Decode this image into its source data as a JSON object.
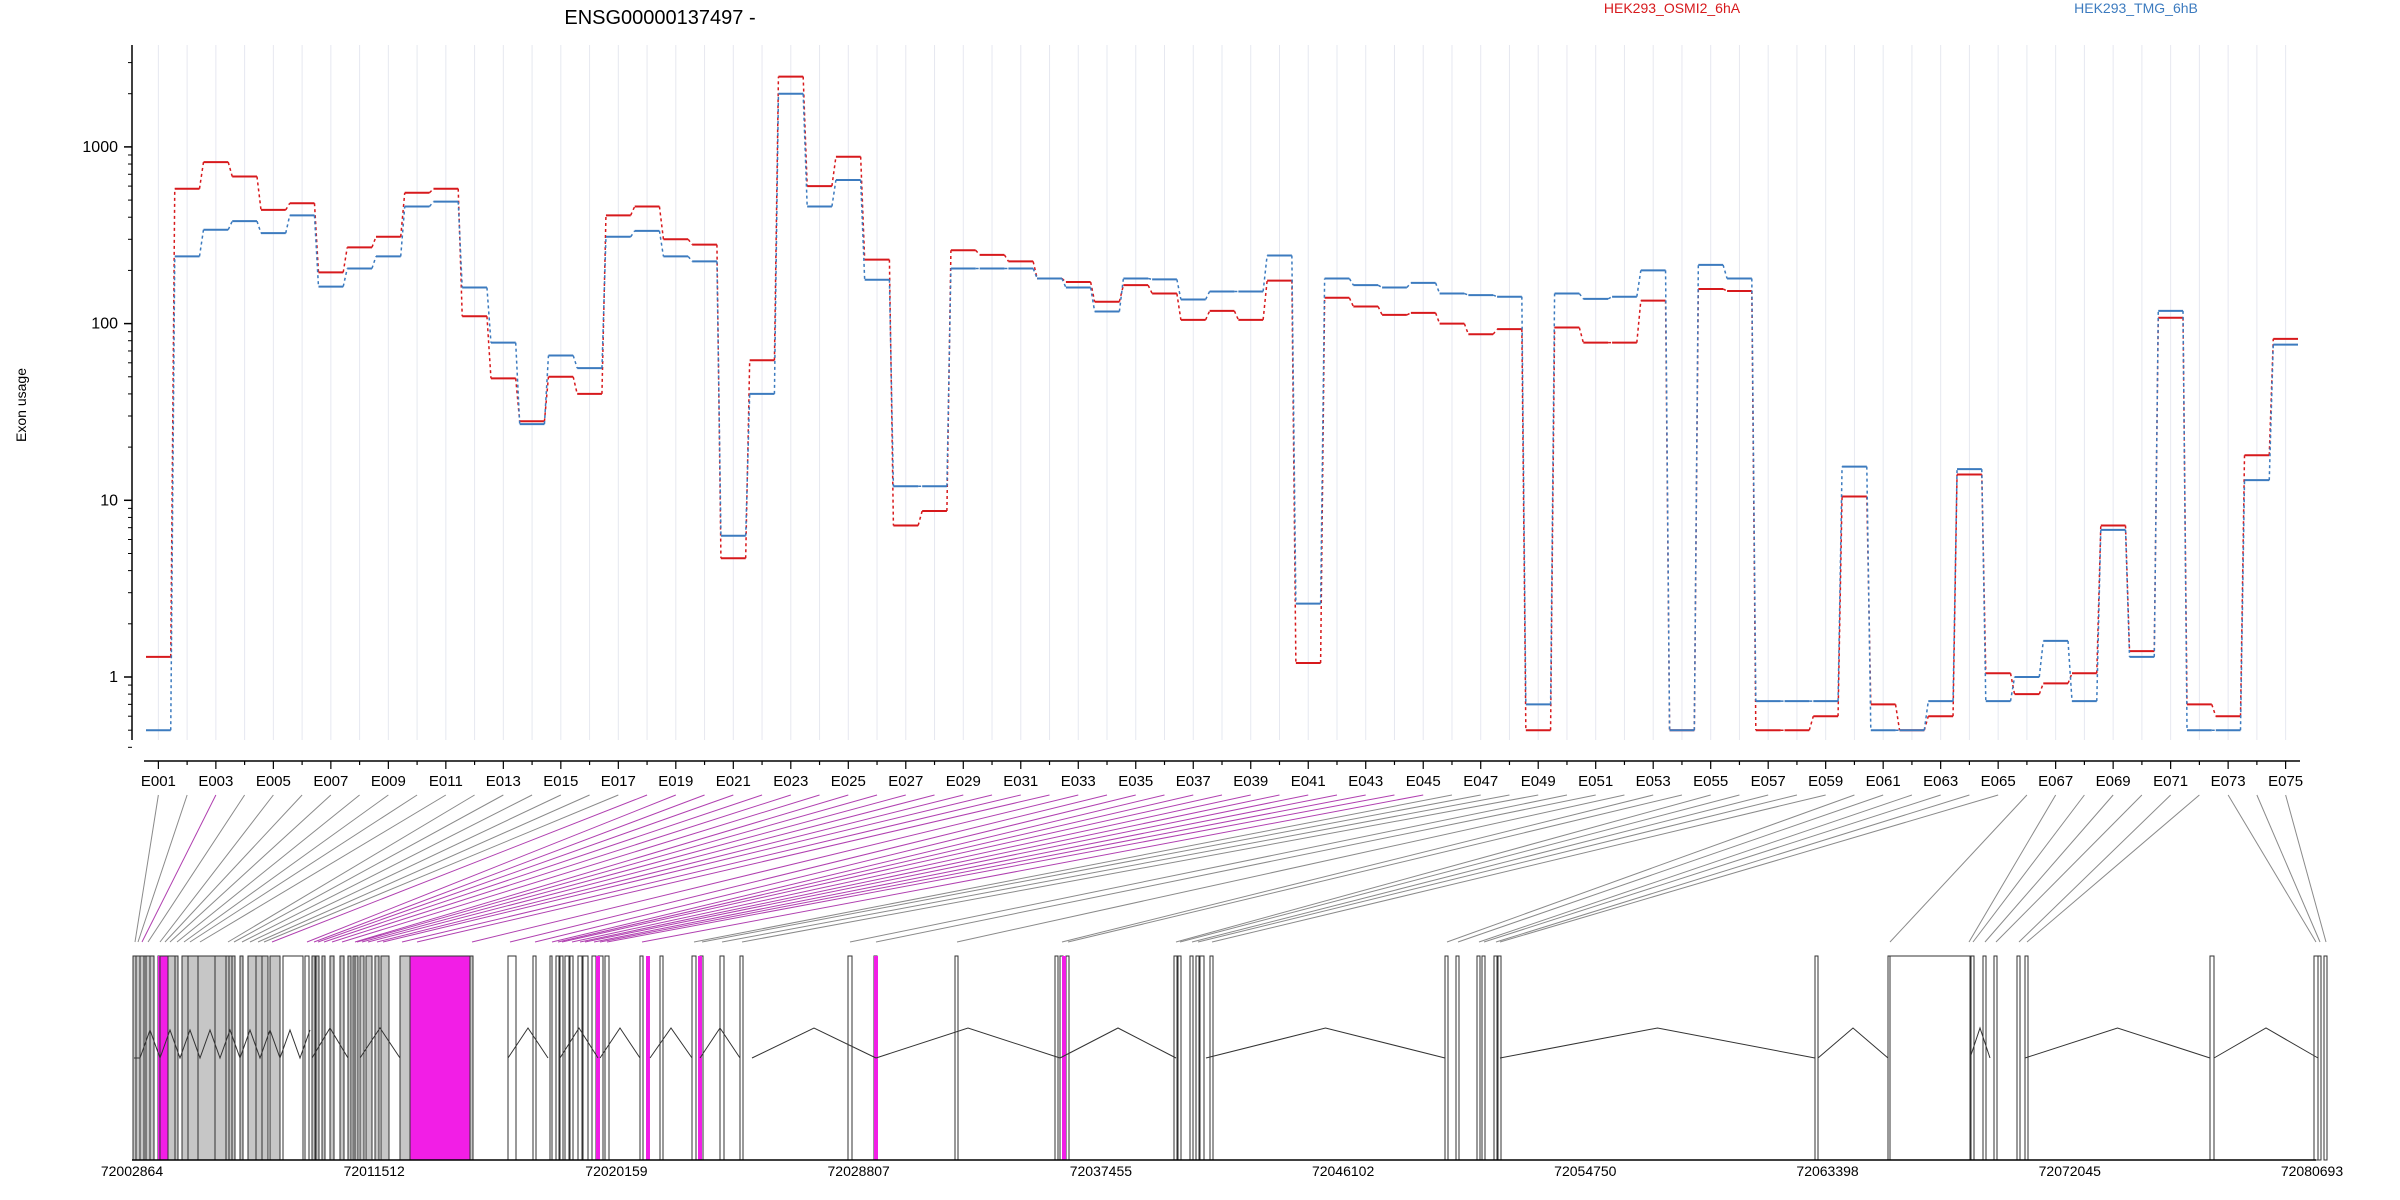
{
  "chart_data": {
    "type": "line",
    "title": "ENSG00000137497 -",
    "ylabel": "Exon usage",
    "yscale": "log",
    "ylim": [
      0.4,
      3500
    ],
    "yticks": [
      "1",
      "10",
      "100",
      "1000"
    ],
    "grid": "vertical",
    "legend_position": "top",
    "exons": [
      "E001",
      "E002",
      "E003",
      "E004",
      "E005",
      "E006",
      "E007",
      "E008",
      "E009",
      "E010",
      "E011",
      "E012",
      "E013",
      "E014",
      "E015",
      "E016",
      "E017",
      "E018",
      "E019",
      "E020",
      "E021",
      "E022",
      "E023",
      "E024",
      "E025",
      "E026",
      "E027",
      "E028",
      "E029",
      "E030",
      "E031",
      "E032",
      "E033",
      "E034",
      "E035",
      "E036",
      "E037",
      "E038",
      "E039",
      "E040",
      "E041",
      "E042",
      "E043",
      "E044",
      "E045",
      "E046",
      "E047",
      "E048",
      "E049",
      "E050",
      "E051",
      "E052",
      "E053",
      "E054",
      "E055",
      "E056",
      "E057",
      "E058",
      "E059",
      "E060",
      "E061",
      "E062",
      "E063",
      "E064",
      "E065",
      "E066",
      "E067",
      "E068",
      "E069",
      "E070",
      "E071",
      "E072",
      "E073",
      "E074",
      "E075"
    ],
    "series": [
      {
        "name": "HEK293_OSMI2_6hA",
        "color": "#d7191c",
        "values": [
          1.3,
          580,
          820,
          680,
          440,
          480,
          195,
          270,
          310,
          550,
          580,
          110,
          49,
          28,
          50,
          40,
          410,
          460,
          300,
          280,
          4.7,
          62,
          2500,
          600,
          880,
          230,
          7.2,
          8.7,
          260,
          245,
          225,
          180,
          172,
          133,
          165,
          148,
          105,
          118,
          105,
          175,
          1.2,
          140,
          125,
          112,
          115,
          100,
          87,
          93,
          0.5,
          95,
          78,
          78,
          135,
          0.5,
          157,
          153,
          0.5,
          0.5,
          0.6,
          10.5,
          0.7,
          0.5,
          0.6,
          14,
          1.05,
          0.8,
          0.92,
          1.05,
          7.2,
          1.4,
          108,
          0.7,
          0.6,
          18,
          82
        ]
      },
      {
        "name": "HEK293_TMG_6hB",
        "color": "#3c7bbf",
        "values": [
          0.5,
          240,
          340,
          380,
          325,
          410,
          162,
          205,
          240,
          460,
          490,
          160,
          78,
          27,
          66,
          56,
          310,
          335,
          240,
          225,
          6.3,
          40,
          2000,
          460,
          650,
          177,
          12,
          12,
          205,
          205,
          205,
          180,
          160,
          117,
          180,
          178,
          137,
          152,
          152,
          243,
          2.6,
          180,
          165,
          160,
          170,
          148,
          145,
          142,
          0.7,
          148,
          138,
          142,
          200,
          0.5,
          215,
          180,
          0.73,
          0.73,
          0.73,
          15.5,
          0.5,
          0.5,
          0.73,
          15,
          0.73,
          1.0,
          1.6,
          0.73,
          6.8,
          1.3,
          118,
          0.5,
          0.5,
          13,
          76
        ]
      }
    ],
    "gene_model": {
      "coordinates": [
        "72002864",
        "72011512",
        "72020159",
        "72028807",
        "72037455",
        "72046102",
        "72054750",
        "72063398",
        "72072045",
        "72080693"
      ],
      "highlight_color": "#f21ee6",
      "feature_color": "#c6c6c6"
    }
  }
}
